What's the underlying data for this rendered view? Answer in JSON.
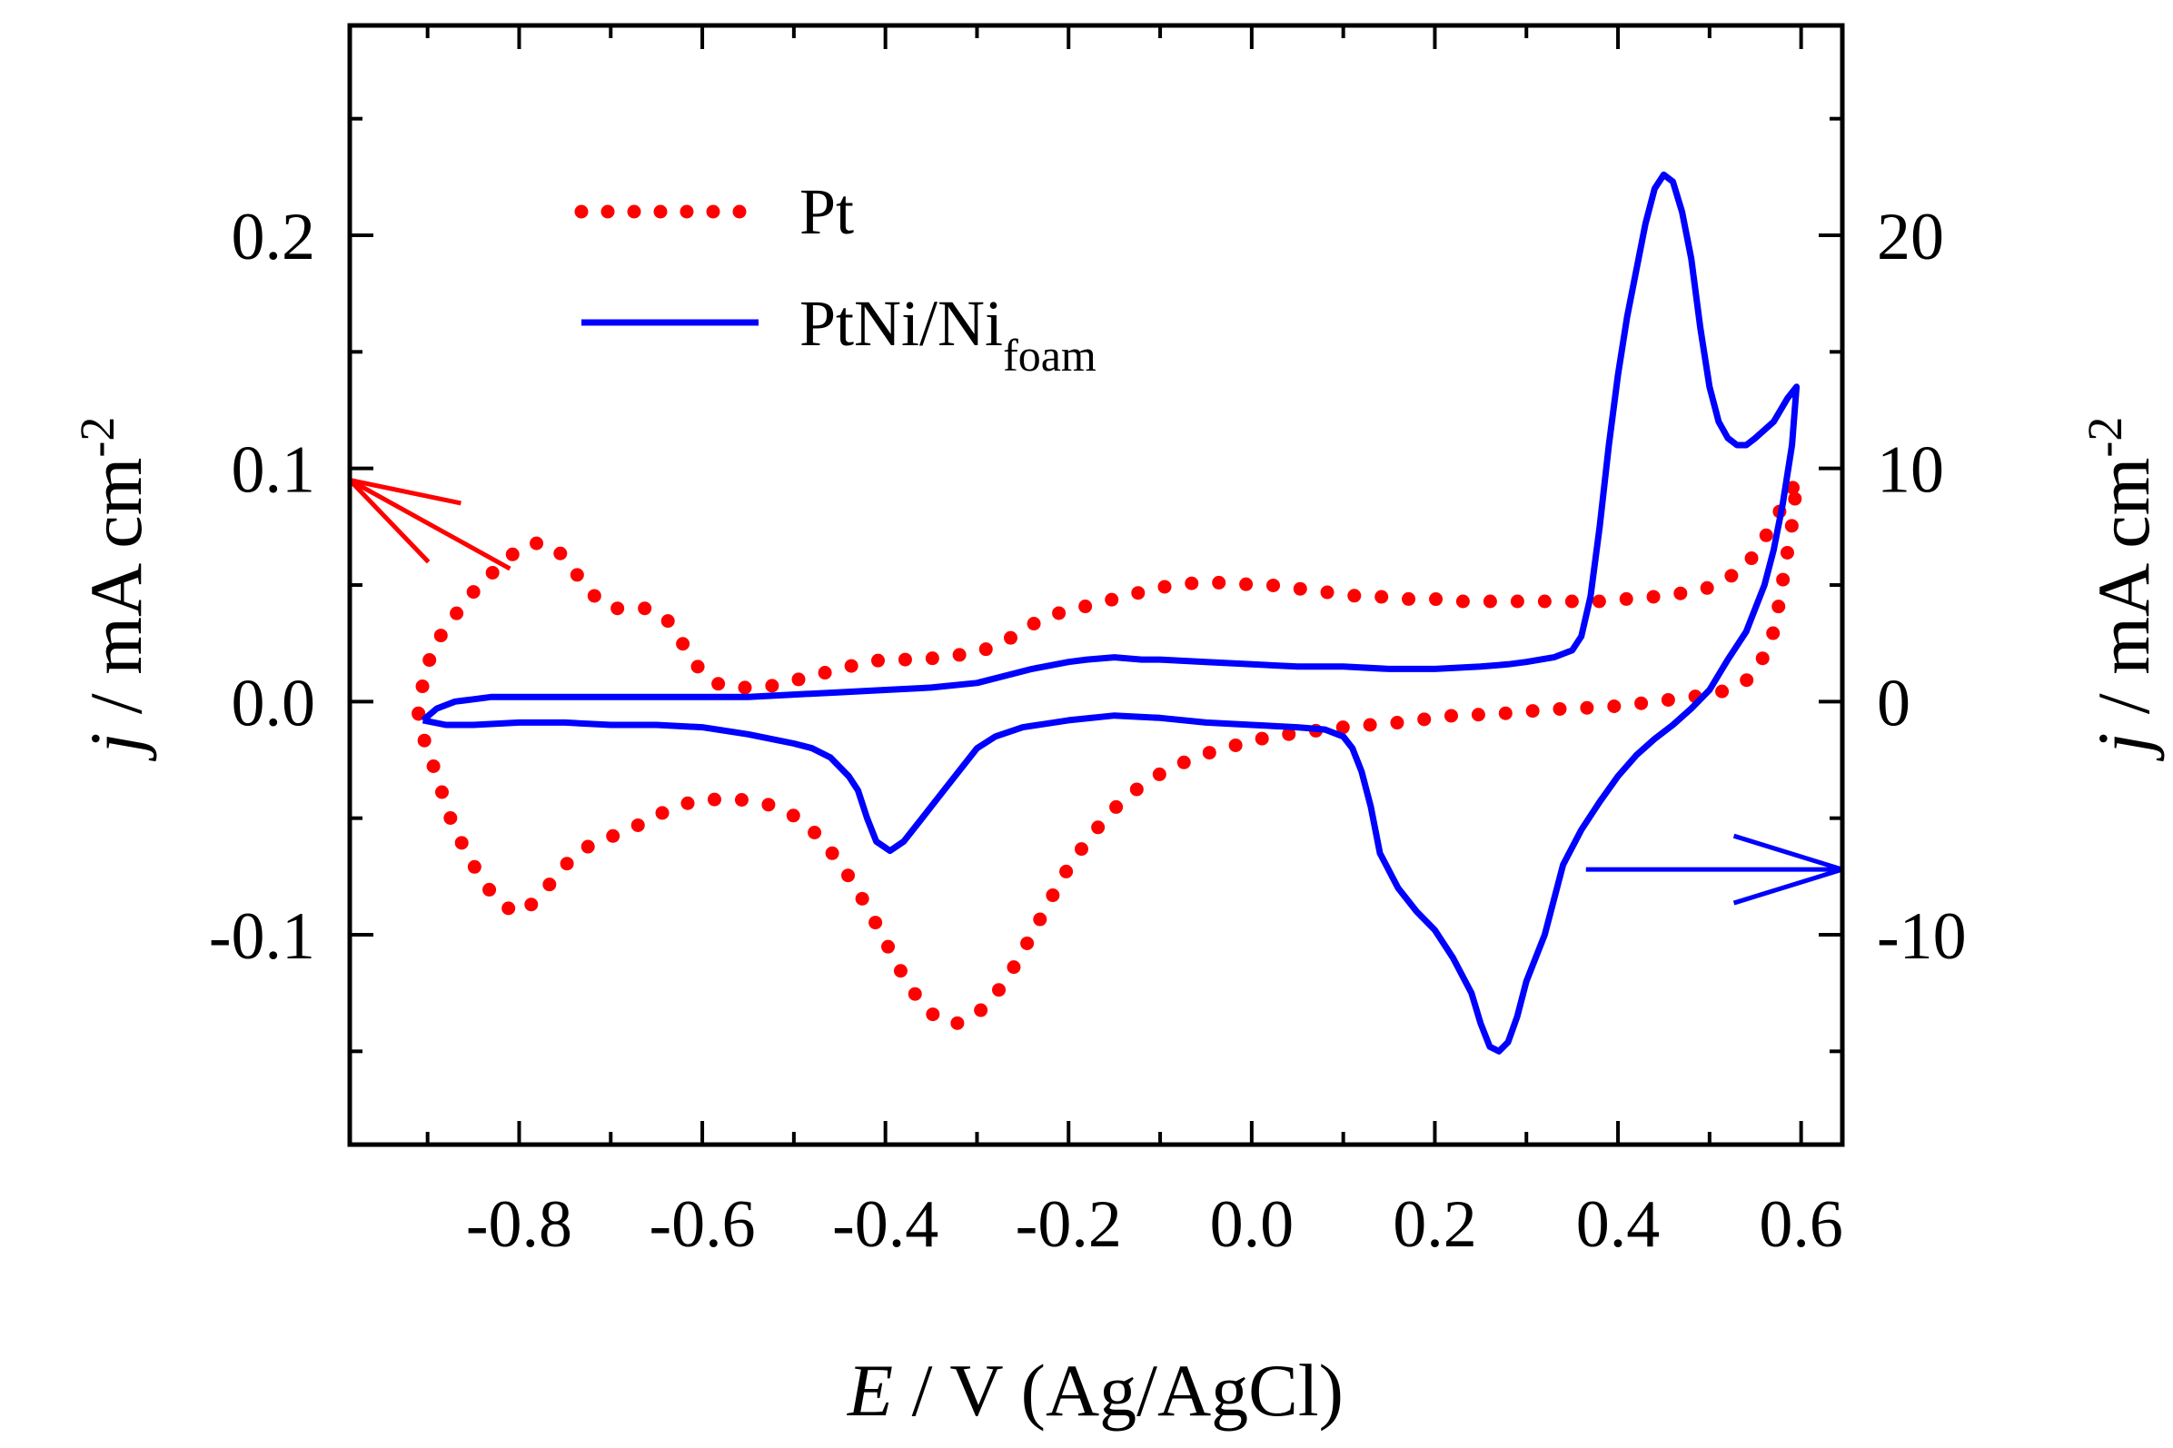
{
  "chart_data": {
    "type": "line",
    "title": "",
    "xlabel": {
      "italic": "E",
      "rest": " / V (Ag/AgCl)"
    },
    "ylabel_left": {
      "italic": "j",
      "rest": " / mA cm",
      "sup": "-2"
    },
    "ylabel_right": {
      "italic": "j",
      "rest": " / mA cm",
      "sup": "-2"
    },
    "xlim": [
      -0.985,
      0.645
    ],
    "ylim_left": [
      -0.19,
      0.29
    ],
    "ylim_right": [
      -19,
      29
    ],
    "x_ticks": [
      -0.8,
      -0.6,
      -0.4,
      -0.2,
      0.0,
      0.2,
      0.4,
      0.6
    ],
    "x_tick_labels": [
      "-0.8",
      "-0.6",
      "-0.4",
      "-0.2",
      "0.0",
      "0.2",
      "0.4",
      "0.6"
    ],
    "y_left_ticks": [
      -0.1,
      0.0,
      0.1,
      0.2
    ],
    "y_left_tick_labels": [
      "-0.1",
      "0.0",
      "0.1",
      "0.2"
    ],
    "y_right_ticks": [
      -10,
      0,
      10,
      20
    ],
    "y_right_tick_labels": [
      "-10",
      "0",
      "10",
      "20"
    ],
    "legend_position": "top-left",
    "colors": {
      "pt": "#ff0000",
      "ptni": "#0000ff",
      "axis": "#000000"
    },
    "series": [
      {
        "name": "Pt",
        "axis": "left",
        "style": "dotted",
        "color": "#ff0000",
        "points": [
          [
            -0.91,
            -0.005
          ],
          [
            -0.905,
            0.008
          ],
          [
            -0.895,
            0.022
          ],
          [
            -0.88,
            0.032
          ],
          [
            -0.86,
            0.042
          ],
          [
            -0.84,
            0.052
          ],
          [
            -0.82,
            0.058
          ],
          [
            -0.8,
            0.066
          ],
          [
            -0.78,
            0.068
          ],
          [
            -0.76,
            0.066
          ],
          [
            -0.74,
            0.056
          ],
          [
            -0.72,
            0.046
          ],
          [
            -0.7,
            0.04
          ],
          [
            -0.68,
            0.04
          ],
          [
            -0.66,
            0.04
          ],
          [
            -0.64,
            0.036
          ],
          [
            -0.62,
            0.024
          ],
          [
            -0.6,
            0.012
          ],
          [
            -0.58,
            0.007
          ],
          [
            -0.56,
            0.006
          ],
          [
            -0.54,
            0.006
          ],
          [
            -0.52,
            0.007
          ],
          [
            -0.5,
            0.009
          ],
          [
            -0.48,
            0.011
          ],
          [
            -0.46,
            0.013
          ],
          [
            -0.44,
            0.015
          ],
          [
            -0.42,
            0.017
          ],
          [
            -0.4,
            0.018
          ],
          [
            -0.38,
            0.018
          ],
          [
            -0.36,
            0.018
          ],
          [
            -0.34,
            0.019
          ],
          [
            -0.32,
            0.02
          ],
          [
            -0.3,
            0.021
          ],
          [
            -0.28,
            0.024
          ],
          [
            -0.26,
            0.028
          ],
          [
            -0.24,
            0.033
          ],
          [
            -0.22,
            0.037
          ],
          [
            -0.2,
            0.039
          ],
          [
            -0.18,
            0.041
          ],
          [
            -0.16,
            0.043
          ],
          [
            -0.14,
            0.045
          ],
          [
            -0.12,
            0.047
          ],
          [
            -0.1,
            0.049
          ],
          [
            -0.08,
            0.05
          ],
          [
            -0.06,
            0.051
          ],
          [
            -0.04,
            0.051
          ],
          [
            -0.02,
            0.051
          ],
          [
            0.0,
            0.05
          ],
          [
            0.02,
            0.05
          ],
          [
            0.04,
            0.049
          ],
          [
            0.06,
            0.048
          ],
          [
            0.08,
            0.047
          ],
          [
            0.1,
            0.046
          ],
          [
            0.12,
            0.045
          ],
          [
            0.14,
            0.045
          ],
          [
            0.16,
            0.044
          ],
          [
            0.18,
            0.044
          ],
          [
            0.2,
            0.044
          ],
          [
            0.22,
            0.043
          ],
          [
            0.24,
            0.043
          ],
          [
            0.26,
            0.043
          ],
          [
            0.28,
            0.043
          ],
          [
            0.3,
            0.043
          ],
          [
            0.32,
            0.043
          ],
          [
            0.34,
            0.043
          ],
          [
            0.36,
            0.043
          ],
          [
            0.38,
            0.043
          ],
          [
            0.4,
            0.044
          ],
          [
            0.42,
            0.044
          ],
          [
            0.44,
            0.045
          ],
          [
            0.46,
            0.046
          ],
          [
            0.48,
            0.047
          ],
          [
            0.5,
            0.049
          ],
          [
            0.52,
            0.053
          ],
          [
            0.54,
            0.058
          ],
          [
            0.55,
            0.064
          ],
          [
            0.56,
            0.07
          ],
          [
            0.57,
            0.077
          ],
          [
            0.58,
            0.084
          ],
          [
            0.59,
            0.091
          ],
          [
            0.595,
            0.095
          ],
          [
            0.593,
            0.086
          ],
          [
            0.59,
            0.076
          ],
          [
            0.585,
            0.064
          ],
          [
            0.58,
            0.052
          ],
          [
            0.575,
            0.04
          ],
          [
            0.57,
            0.03
          ],
          [
            0.56,
            0.02
          ],
          [
            0.55,
            0.013
          ],
          [
            0.54,
            0.009
          ],
          [
            0.52,
            0.005
          ],
          [
            0.5,
            0.003
          ],
          [
            0.48,
            0.002
          ],
          [
            0.46,
            0.001
          ],
          [
            0.44,
            0.0
          ],
          [
            0.42,
            -0.001
          ],
          [
            0.4,
            -0.002
          ],
          [
            0.38,
            -0.002
          ],
          [
            0.36,
            -0.003
          ],
          [
            0.34,
            -0.003
          ],
          [
            0.32,
            -0.004
          ],
          [
            0.3,
            -0.004
          ],
          [
            0.28,
            -0.005
          ],
          [
            0.26,
            -0.005
          ],
          [
            0.24,
            -0.006
          ],
          [
            0.22,
            -0.006
          ],
          [
            0.2,
            -0.007
          ],
          [
            0.18,
            -0.008
          ],
          [
            0.16,
            -0.009
          ],
          [
            0.14,
            -0.01
          ],
          [
            0.12,
            -0.01
          ],
          [
            0.1,
            -0.011
          ],
          [
            0.08,
            -0.012
          ],
          [
            0.06,
            -0.013
          ],
          [
            0.04,
            -0.014
          ],
          [
            0.02,
            -0.015
          ],
          [
            0.0,
            -0.017
          ],
          [
            -0.02,
            -0.019
          ],
          [
            -0.04,
            -0.021
          ],
          [
            -0.06,
            -0.024
          ],
          [
            -0.08,
            -0.027
          ],
          [
            -0.1,
            -0.031
          ],
          [
            -0.12,
            -0.036
          ],
          [
            -0.14,
            -0.042
          ],
          [
            -0.16,
            -0.05
          ],
          [
            -0.18,
            -0.06
          ],
          [
            -0.2,
            -0.071
          ],
          [
            -0.22,
            -0.085
          ],
          [
            -0.24,
            -0.1
          ],
          [
            -0.26,
            -0.114
          ],
          [
            -0.28,
            -0.126
          ],
          [
            -0.3,
            -0.134
          ],
          [
            -0.32,
            -0.138
          ],
          [
            -0.34,
            -0.137
          ],
          [
            -0.36,
            -0.13
          ],
          [
            -0.38,
            -0.118
          ],
          [
            -0.4,
            -0.103
          ],
          [
            -0.42,
            -0.088
          ],
          [
            -0.44,
            -0.075
          ],
          [
            -0.46,
            -0.064
          ],
          [
            -0.48,
            -0.055
          ],
          [
            -0.5,
            -0.049
          ],
          [
            -0.52,
            -0.045
          ],
          [
            -0.54,
            -0.043
          ],
          [
            -0.56,
            -0.042
          ],
          [
            -0.58,
            -0.042
          ],
          [
            -0.6,
            -0.042
          ],
          [
            -0.62,
            -0.044
          ],
          [
            -0.64,
            -0.047
          ],
          [
            -0.66,
            -0.051
          ],
          [
            -0.68,
            -0.055
          ],
          [
            -0.7,
            -0.058
          ],
          [
            -0.72,
            -0.061
          ],
          [
            -0.74,
            -0.066
          ],
          [
            -0.76,
            -0.075
          ],
          [
            -0.78,
            -0.085
          ],
          [
            -0.8,
            -0.091
          ],
          [
            -0.82,
            -0.087
          ],
          [
            -0.84,
            -0.077
          ],
          [
            -0.86,
            -0.063
          ],
          [
            -0.875,
            -0.05
          ],
          [
            -0.885,
            -0.038
          ],
          [
            -0.895,
            -0.026
          ],
          [
            -0.905,
            -0.015
          ],
          [
            -0.91,
            -0.005
          ]
        ]
      },
      {
        "name": "PtNi/Ni",
        "name_sub": "foam",
        "axis": "right",
        "style": "solid",
        "color": "#0000ff",
        "points": [
          [
            -0.905,
            -0.8
          ],
          [
            -0.89,
            -0.3
          ],
          [
            -0.87,
            0.0
          ],
          [
            -0.85,
            0.1
          ],
          [
            -0.83,
            0.2
          ],
          [
            -0.8,
            0.2
          ],
          [
            -0.75,
            0.2
          ],
          [
            -0.7,
            0.2
          ],
          [
            -0.65,
            0.2
          ],
          [
            -0.6,
            0.2
          ],
          [
            -0.55,
            0.2
          ],
          [
            -0.5,
            0.3
          ],
          [
            -0.45,
            0.4
          ],
          [
            -0.4,
            0.5
          ],
          [
            -0.35,
            0.6
          ],
          [
            -0.3,
            0.8
          ],
          [
            -0.27,
            1.1
          ],
          [
            -0.24,
            1.4
          ],
          [
            -0.2,
            1.7
          ],
          [
            -0.18,
            1.8
          ],
          [
            -0.15,
            1.9
          ],
          [
            -0.12,
            1.8
          ],
          [
            -0.1,
            1.8
          ],
          [
            -0.05,
            1.7
          ],
          [
            0.0,
            1.6
          ],
          [
            0.05,
            1.5
          ],
          [
            0.1,
            1.5
          ],
          [
            0.15,
            1.4
          ],
          [
            0.2,
            1.4
          ],
          [
            0.25,
            1.5
          ],
          [
            0.28,
            1.6
          ],
          [
            0.3,
            1.7
          ],
          [
            0.33,
            1.9
          ],
          [
            0.35,
            2.2
          ],
          [
            0.36,
            2.8
          ],
          [
            0.37,
            4.5
          ],
          [
            0.38,
            7.5
          ],
          [
            0.39,
            11.0
          ],
          [
            0.4,
            14.0
          ],
          [
            0.41,
            16.5
          ],
          [
            0.42,
            18.5
          ],
          [
            0.43,
            20.5
          ],
          [
            0.44,
            22.0
          ],
          [
            0.45,
            22.6
          ],
          [
            0.46,
            22.3
          ],
          [
            0.47,
            21.0
          ],
          [
            0.48,
            19.0
          ],
          [
            0.49,
            16.0
          ],
          [
            0.5,
            13.5
          ],
          [
            0.51,
            12.0
          ],
          [
            0.52,
            11.3
          ],
          [
            0.53,
            11.0
          ],
          [
            0.54,
            11.0
          ],
          [
            0.55,
            11.3
          ],
          [
            0.57,
            12.0
          ],
          [
            0.585,
            13.0
          ],
          [
            0.595,
            13.5
          ],
          [
            0.59,
            11.0
          ],
          [
            0.58,
            8.5
          ],
          [
            0.57,
            6.5
          ],
          [
            0.56,
            5.0
          ],
          [
            0.55,
            4.0
          ],
          [
            0.54,
            3.0
          ],
          [
            0.52,
            1.8
          ],
          [
            0.5,
            0.5
          ],
          [
            0.48,
            -0.3
          ],
          [
            0.46,
            -1.0
          ],
          [
            0.44,
            -1.6
          ],
          [
            0.42,
            -2.3
          ],
          [
            0.4,
            -3.2
          ],
          [
            0.38,
            -4.3
          ],
          [
            0.36,
            -5.5
          ],
          [
            0.34,
            -7.0
          ],
          [
            0.33,
            -8.5
          ],
          [
            0.32,
            -10.0
          ],
          [
            0.3,
            -12.0
          ],
          [
            0.29,
            -13.5
          ],
          [
            0.28,
            -14.6
          ],
          [
            0.27,
            -15.0
          ],
          [
            0.26,
            -14.8
          ],
          [
            0.25,
            -13.8
          ],
          [
            0.24,
            -12.5
          ],
          [
            0.22,
            -11.0
          ],
          [
            0.2,
            -9.8
          ],
          [
            0.18,
            -9.0
          ],
          [
            0.16,
            -8.0
          ],
          [
            0.14,
            -6.5
          ],
          [
            0.13,
            -4.5
          ],
          [
            0.12,
            -3.0
          ],
          [
            0.11,
            -2.0
          ],
          [
            0.1,
            -1.5
          ],
          [
            0.08,
            -1.2
          ],
          [
            0.05,
            -1.1
          ],
          [
            0.0,
            -1.0
          ],
          [
            -0.05,
            -0.9
          ],
          [
            -0.1,
            -0.7
          ],
          [
            -0.15,
            -0.6
          ],
          [
            -0.2,
            -0.8
          ],
          [
            -0.25,
            -1.1
          ],
          [
            -0.28,
            -1.5
          ],
          [
            -0.3,
            -2.0
          ],
          [
            -0.32,
            -3.0
          ],
          [
            -0.34,
            -4.0
          ],
          [
            -0.36,
            -5.0
          ],
          [
            -0.38,
            -6.0
          ],
          [
            -0.395,
            -6.4
          ],
          [
            -0.41,
            -6.0
          ],
          [
            -0.42,
            -5.0
          ],
          [
            -0.43,
            -3.8
          ],
          [
            -0.44,
            -3.2
          ],
          [
            -0.46,
            -2.4
          ],
          [
            -0.48,
            -2.0
          ],
          [
            -0.5,
            -1.8
          ],
          [
            -0.55,
            -1.4
          ],
          [
            -0.6,
            -1.1
          ],
          [
            -0.65,
            -1.0
          ],
          [
            -0.7,
            -1.0
          ],
          [
            -0.75,
            -0.9
          ],
          [
            -0.8,
            -0.9
          ],
          [
            -0.85,
            -1.0
          ],
          [
            -0.88,
            -1.0
          ],
          [
            -0.905,
            -0.8
          ]
        ]
      }
    ],
    "annotations": [
      {
        "name": "left-axis-arrow",
        "color": "#ff0000",
        "from": [
          -0.81,
          0.057
        ],
        "to": [
          -0.985,
          0.095
        ],
        "points_to": "left"
      },
      {
        "name": "right-axis-arrow",
        "color": "#0000ff",
        "from": [
          0.365,
          -7.2
        ],
        "to": [
          0.645,
          -7.2
        ],
        "points_to": "right"
      }
    ]
  }
}
